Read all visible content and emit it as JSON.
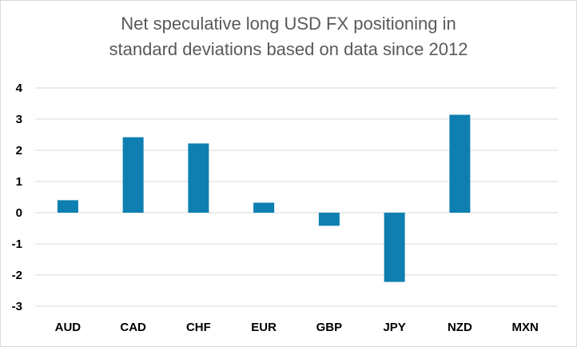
{
  "chart_data": {
    "type": "bar",
    "title_lines": [
      "Net speculative long USD FX positioning in",
      "standard deviations based on data since 2012"
    ],
    "categories": [
      "AUD",
      "CAD",
      "CHF",
      "EUR",
      "GBP",
      "JPY",
      "NZD",
      "MXN"
    ],
    "values": [
      0.4,
      2.42,
      2.22,
      0.32,
      -0.42,
      -2.22,
      3.14,
      0
    ],
    "ylim": [
      -3,
      4
    ],
    "yticks": [
      "4",
      "3",
      "2",
      "1",
      "0",
      "-1",
      "-2",
      "-3"
    ],
    "grid": true,
    "legend": "none",
    "bar_color": "#0E7FB0",
    "grid_color": "#d9d9d9"
  }
}
